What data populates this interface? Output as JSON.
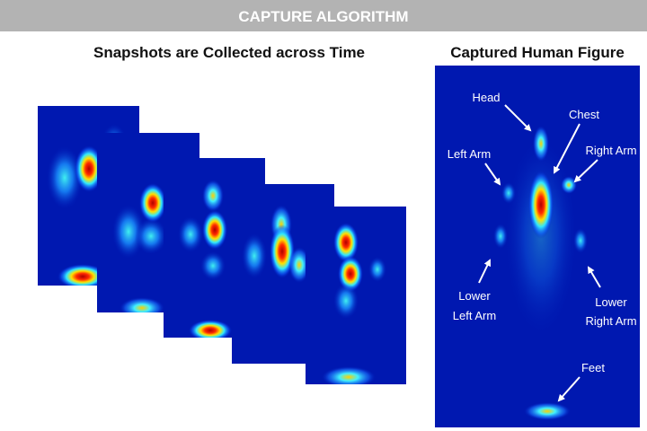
{
  "header": {
    "title": "CAPTURE ALGORITHM"
  },
  "left_panel": {
    "title": "Snapshots are Collected across Time"
  },
  "right_panel": {
    "title": "Captured Human Figure",
    "labels": {
      "head": [
        "Head"
      ],
      "chest": [
        "Chest"
      ],
      "left_arm": [
        "Left Arm"
      ],
      "right_arm": [
        "Right Arm"
      ],
      "lower_left_arm": [
        "Lower",
        "Left Arm"
      ],
      "lower_right_arm": [
        "Lower",
        "Right Arm"
      ],
      "feet": [
        "Feet"
      ]
    }
  }
}
